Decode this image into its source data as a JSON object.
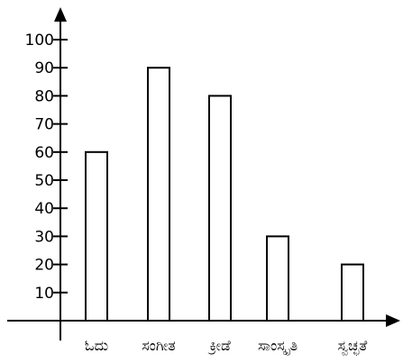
{
  "chart_data": {
    "type": "bar",
    "categories": [
      "ಓದು",
      "ಸಂಗೀತ",
      "ಕ್ರೀಡೆ",
      "ಸಾಂಸ್ಕೃತಿ",
      "ಸ್ವಚ್ಛತೆ"
    ],
    "values": [
      60,
      90,
      80,
      30,
      20
    ],
    "y_ticks": [
      "10",
      "20",
      "30",
      "40",
      "50",
      "60",
      "70",
      "80",
      "90",
      "100"
    ],
    "ylim": [
      0,
      100
    ],
    "grid": false,
    "legend": "none",
    "bar_fill": "#ffffff",
    "bar_stroke": "#000000",
    "axis_color": "#000000"
  }
}
